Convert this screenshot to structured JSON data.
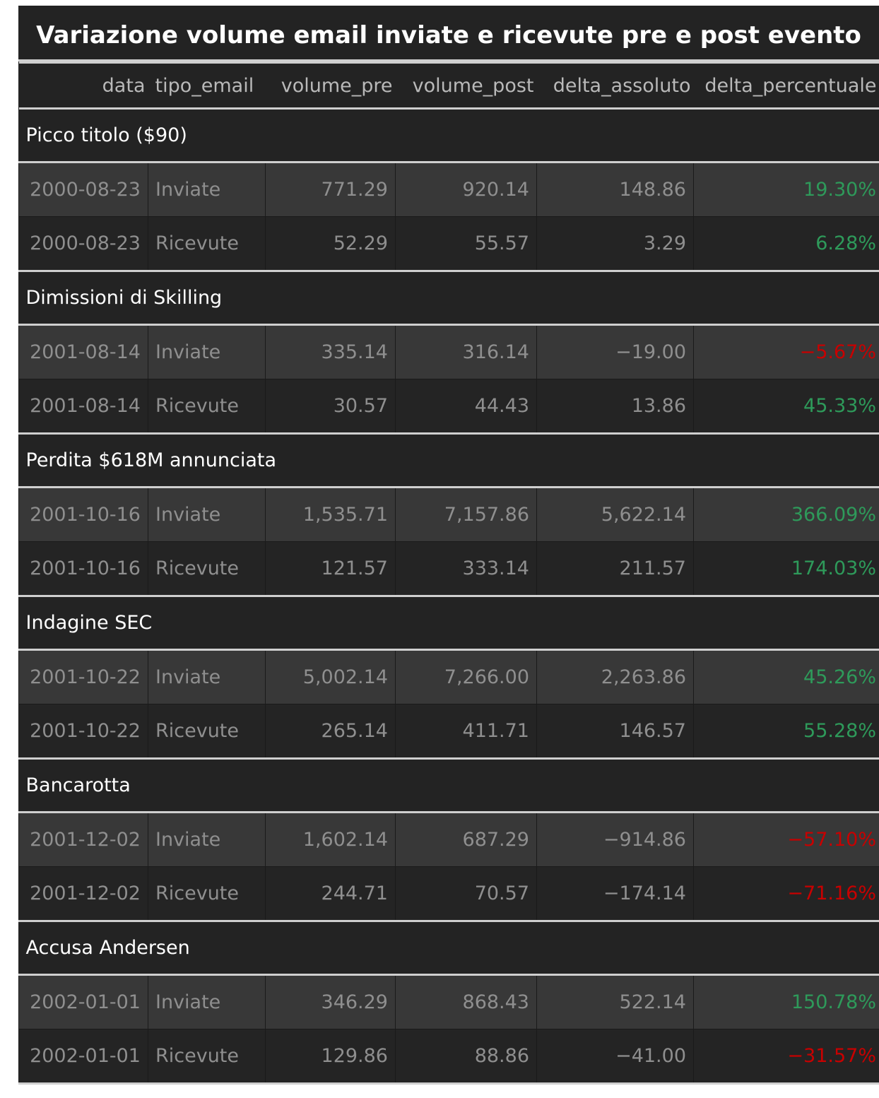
{
  "chart_data": {
    "type": "table",
    "title": "Variazione volume email inviate e ricevute pre e post evento",
    "columns": [
      "data",
      "tipo_email",
      "volume_pre",
      "volume_post",
      "delta_assoluto",
      "delta_percentuale"
    ],
    "groups": [
      {
        "label": "Picco titolo ($90)",
        "rows": [
          [
            "2000-08-23",
            "Inviate",
            "771.29",
            "920.14",
            "148.86",
            "19.30%"
          ],
          [
            "2000-08-23",
            "Ricevute",
            "52.29",
            "55.57",
            "3.29",
            "6.28%"
          ]
        ]
      },
      {
        "label": "Dimissioni di Skilling",
        "rows": [
          [
            "2001-08-14",
            "Inviate",
            "335.14",
            "316.14",
            "−19.00",
            "−5.67%"
          ],
          [
            "2001-08-14",
            "Ricevute",
            "30.57",
            "44.43",
            "13.86",
            "45.33%"
          ]
        ]
      },
      {
        "label": "Perdita $618M annunciata",
        "rows": [
          [
            "2001-10-16",
            "Inviate",
            "1,535.71",
            "7,157.86",
            "5,622.14",
            "366.09%"
          ],
          [
            "2001-10-16",
            "Ricevute",
            "121.57",
            "333.14",
            "211.57",
            "174.03%"
          ]
        ]
      },
      {
        "label": "Indagine SEC",
        "rows": [
          [
            "2001-10-22",
            "Inviate",
            "5,002.14",
            "7,266.00",
            "2,263.86",
            "45.26%"
          ],
          [
            "2001-10-22",
            "Ricevute",
            "265.14",
            "411.71",
            "146.57",
            "55.28%"
          ]
        ]
      },
      {
        "label": "Bancarotta",
        "rows": [
          [
            "2001-12-02",
            "Inviate",
            "1,602.14",
            "687.29",
            "−914.86",
            "−57.10%"
          ],
          [
            "2001-12-02",
            "Ricevute",
            "244.71",
            "70.57",
            "−174.14",
            "−71.16%"
          ]
        ]
      },
      {
        "label": "Accusa Andersen",
        "rows": [
          [
            "2002-01-01",
            "Inviate",
            "346.29",
            "868.43",
            "522.14",
            "150.78%"
          ],
          [
            "2002-01-01",
            "Ricevute",
            "129.86",
            "88.86",
            "−41.00",
            "−31.57%"
          ]
        ]
      }
    ],
    "colors": {
      "positive": "#2e9a5a",
      "negative": "#c80000",
      "background": "#232323",
      "row_alt": "#383838"
    }
  }
}
